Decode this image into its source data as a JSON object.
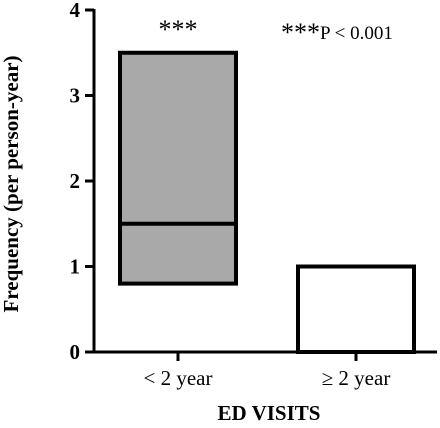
{
  "chart_data": {
    "type": "bar",
    "categories": [
      "< 2 year",
      "≥ 2 year"
    ],
    "series": [
      {
        "values": [
          3.5,
          1.0
        ],
        "lower": [
          0.8,
          null
        ],
        "median": [
          1.5,
          null
        ]
      }
    ],
    "bar_fill": [
      "#a9a9a9",
      "#ffffff"
    ],
    "bar_stroke": "#000000",
    "xlabel": "ED VISITS",
    "ylabel": "Frequency (per person-year)",
    "ylim": [
      0,
      4
    ],
    "yticks": [
      "0",
      "1",
      "2",
      "3",
      "4"
    ],
    "annotations": {
      "bar_stars": "***",
      "legend_stars": "***",
      "legend_text": "P < 0.001"
    },
    "grid": false
  }
}
